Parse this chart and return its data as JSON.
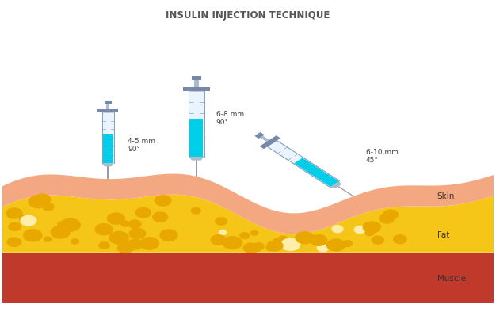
{
  "title": "INSULIN INJECTION TECHNIQUE",
  "title_fontsize": 8.5,
  "title_color": "#555555",
  "bg_color": "#ffffff",
  "skin_color": "#F4A882",
  "fat_color": "#F5C518",
  "muscle_color": "#C0392B",
  "syringe_liquid_color": "#00CFEA",
  "syringe_barrel_color": "#EAF4FF",
  "syringe_frame_color": "#8899BB",
  "syringe_needle_color": "#9999AA",
  "labels": {
    "skin": "Skin",
    "fat": "Fat",
    "muscle": "Muscle"
  },
  "label_fontsize": 7.5,
  "label_color": "#333333",
  "syringe_label_fontsize": 6.5,
  "syringe_label_color": "#444444",
  "dot_color_main": "#E8A800",
  "dot_color_light": "#FFEEAA"
}
